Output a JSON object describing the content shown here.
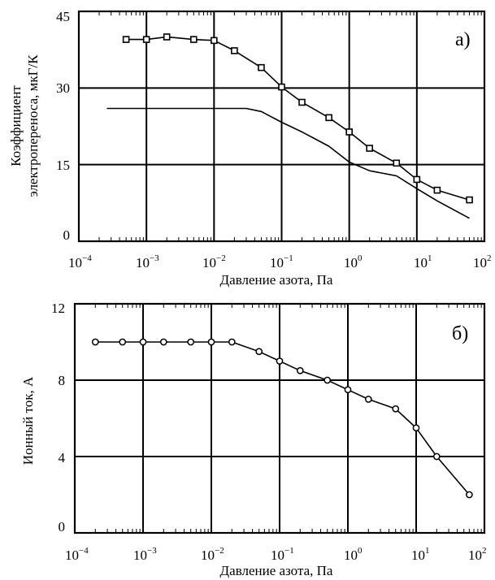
{
  "chart_data": [
    {
      "panel": "a)",
      "type": "line",
      "xscale": "log",
      "xlim": [
        0.0001,
        100
      ],
      "ylim": [
        0,
        45
      ],
      "x_ticks": [
        {
          "base": "10",
          "exp": "−4"
        },
        {
          "base": "10",
          "exp": "−3"
        },
        {
          "base": "10",
          "exp": "−2"
        },
        {
          "base": "10",
          "exp": "−1"
        },
        {
          "base": "10",
          "exp": "0"
        },
        {
          "base": "10",
          "exp": "1"
        },
        {
          "base": "10",
          "exp": "2"
        }
      ],
      "y_ticks": [
        "0",
        "15",
        "30",
        "45"
      ],
      "y_tick_values": [
        0,
        15,
        30,
        45
      ],
      "xlabel": "Давление азота, Па",
      "ylabel_line1": "Коэффициент",
      "ylabel_line2": "электропереноса, мкГ/К",
      "grid": "major",
      "series": [
        {
          "marker": "square",
          "x": [
            0.0005,
            0.001,
            0.002,
            0.005,
            0.01,
            0.02,
            0.05,
            0.1,
            0.2,
            0.5,
            1,
            2,
            5,
            10,
            20,
            60
          ],
          "y": [
            39.5,
            39.5,
            40,
            39.5,
            39.3,
            37.3,
            34,
            30.2,
            27.2,
            24.2,
            21.4,
            18.2,
            15.3,
            12.1,
            10,
            8.1
          ]
        },
        {
          "marker": "none",
          "x": [
            0.00026,
            0.001,
            0.01,
            0.03,
            0.05,
            0.1,
            0.2,
            0.5,
            1,
            2,
            5,
            10,
            20,
            60
          ],
          "y": [
            26,
            26,
            26,
            26,
            25.4,
            23.3,
            21.4,
            18.6,
            15.5,
            13.8,
            12.8,
            10.3,
            7.9,
            4.5
          ]
        }
      ]
    },
    {
      "panel": "б)",
      "type": "line",
      "xscale": "log",
      "xlim": [
        0.0001,
        100
      ],
      "ylim": [
        0,
        12
      ],
      "x_ticks": [
        {
          "base": "10",
          "exp": "−4"
        },
        {
          "base": "10",
          "exp": "−3"
        },
        {
          "base": "10",
          "exp": "−2"
        },
        {
          "base": "10",
          "exp": "−1"
        },
        {
          "base": "10",
          "exp": "0"
        },
        {
          "base": "10",
          "exp": "1"
        },
        {
          "base": "10",
          "exp": "2"
        }
      ],
      "y_ticks": [
        "0",
        "4",
        "8",
        "12"
      ],
      "y_tick_values": [
        0,
        4,
        8,
        12
      ],
      "xlabel": "Давление азота, Па",
      "ylabel": "Ионный ток, А",
      "grid": "major",
      "series": [
        {
          "marker": "circle",
          "x": [
            0.0002,
            0.0005,
            0.001,
            0.002,
            0.005,
            0.01,
            0.02,
            0.05,
            0.1,
            0.2,
            0.5,
            1,
            2,
            5,
            10,
            20,
            60
          ],
          "y": [
            10,
            10,
            10,
            10,
            10,
            10,
            10,
            9.5,
            9,
            8.5,
            8,
            7.5,
            7,
            6.5,
            5.5,
            4,
            2
          ]
        }
      ]
    }
  ]
}
